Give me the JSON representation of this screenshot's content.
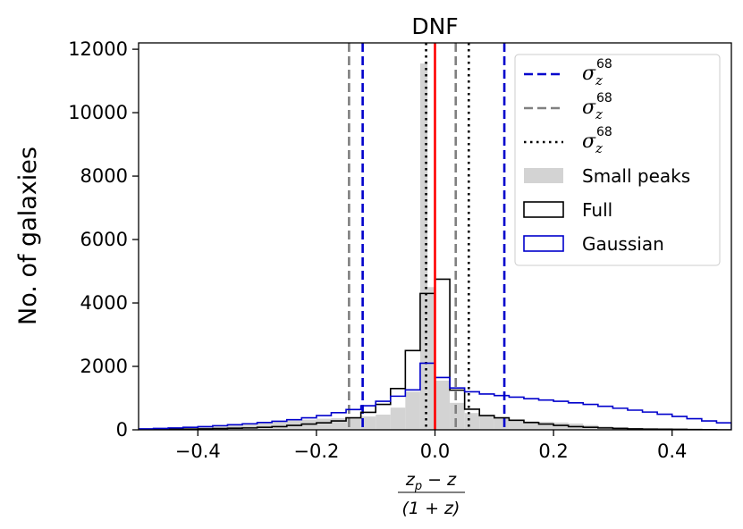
{
  "chart_data": {
    "type": "histogram",
    "title": "DNF",
    "ylabel": "No. of galaxies",
    "xlabel": {
      "numerator": "z_p − z",
      "denominator": "(1 + z)",
      "num_main": "z",
      "num_sub": "p",
      "num_rest": " − z",
      "den_text": "(1 + z)"
    },
    "xlim": [
      -0.5,
      0.5
    ],
    "ylim": [
      0,
      12200
    ],
    "xticks": [
      -0.4,
      -0.2,
      0.0,
      0.2,
      0.4
    ],
    "xtick_labels": [
      "−0.4",
      "−0.2",
      "0.0",
      "0.2",
      "0.4"
    ],
    "yticks": [
      0,
      2000,
      4000,
      6000,
      8000,
      10000,
      12000
    ],
    "ytick_labels": [
      "0",
      "2000",
      "4000",
      "6000",
      "8000",
      "10000",
      "12000"
    ],
    "bin_edges": [
      -0.5,
      -0.475,
      -0.45,
      -0.425,
      -0.4,
      -0.375,
      -0.35,
      -0.325,
      -0.3,
      -0.275,
      -0.25,
      -0.225,
      -0.2,
      -0.175,
      -0.15,
      -0.125,
      -0.1,
      -0.075,
      -0.05,
      -0.025,
      0.0,
      0.025,
      0.05,
      0.075,
      0.1,
      0.125,
      0.15,
      0.175,
      0.2,
      0.225,
      0.25,
      0.275,
      0.3,
      0.325,
      0.35,
      0.375,
      0.4,
      0.425,
      0.45,
      0.475,
      0.5
    ],
    "series": [
      {
        "name": "Small peaks",
        "style": "filled",
        "color": "#d3d3d3",
        "bin_edges": [
          -0.5,
          -0.475,
          -0.45,
          -0.425,
          -0.4,
          -0.375,
          -0.35,
          -0.325,
          -0.3,
          -0.275,
          -0.25,
          -0.225,
          -0.2,
          -0.175,
          -0.15,
          -0.125,
          -0.1,
          -0.075,
          -0.05,
          -0.025,
          -0.0125,
          0.0,
          0.025,
          0.05,
          0.075,
          0.1,
          0.125,
          0.15,
          0.175,
          0.2,
          0.225,
          0.25,
          0.275,
          0.3,
          0.325,
          0.35,
          0.375,
          0.4,
          0.425,
          0.45,
          0.475,
          0.5
        ],
        "values": [
          20,
          40,
          60,
          80,
          100,
          120,
          150,
          180,
          210,
          250,
          290,
          320,
          350,
          370,
          390,
          420,
          480,
          700,
          1200,
          11550,
          4500,
          1550,
          850,
          530,
          460,
          370,
          300,
          270,
          250,
          230,
          200,
          150,
          110,
          80,
          60,
          40,
          30,
          20,
          15,
          10,
          5
        ]
      },
      {
        "name": "Full",
        "style": "step",
        "color": "#000000",
        "values": [
          10,
          15,
          20,
          25,
          30,
          40,
          50,
          60,
          80,
          100,
          140,
          180,
          220,
          280,
          380,
          550,
          800,
          1300,
          2500,
          4300,
          4750,
          1250,
          650,
          450,
          380,
          300,
          230,
          180,
          140,
          100,
          80,
          60,
          45,
          30,
          25,
          20,
          15,
          10,
          5,
          0
        ]
      },
      {
        "name": "Gaussian",
        "style": "step",
        "color": "#0000cc",
        "values": [
          30,
          45,
          60,
          80,
          100,
          130,
          160,
          190,
          230,
          270,
          320,
          380,
          450,
          540,
          640,
          760,
          900,
          1060,
          1260,
          2100,
          1650,
          1320,
          1200,
          1130,
          1080,
          1030,
          980,
          940,
          900,
          850,
          800,
          740,
          680,
          620,
          560,
          490,
          420,
          350,
          280,
          220
        ]
      }
    ],
    "vlines": [
      {
        "name": "zero-line",
        "x": 0.0,
        "color": "#ff0000",
        "style": "solid"
      },
      {
        "name": "sigma68-blue-left",
        "x": -0.122,
        "color": "#0000cc",
        "style": "dashed"
      },
      {
        "name": "sigma68-blue-right",
        "x": 0.117,
        "color": "#0000cc",
        "style": "dashed"
      },
      {
        "name": "sigma68-gray-left",
        "x": -0.145,
        "color": "#808080",
        "style": "dashed"
      },
      {
        "name": "sigma68-gray-right",
        "x": 0.035,
        "color": "#808080",
        "style": "dashed"
      },
      {
        "name": "sigma68-black-left",
        "x": -0.015,
        "color": "#000000",
        "style": "dotted"
      },
      {
        "name": "sigma68-black-right",
        "x": 0.057,
        "color": "#000000",
        "style": "dotted"
      }
    ],
    "legend": {
      "location": "top-right",
      "entries": [
        {
          "label": "σ_z^68",
          "main": "σ",
          "sub": "z",
          "sup": "68",
          "kind": "dashed",
          "color": "#0000cc"
        },
        {
          "label": "σ_z^68",
          "main": "σ",
          "sub": "z",
          "sup": "68",
          "kind": "dashed",
          "color": "#808080"
        },
        {
          "label": "σ_z^68",
          "main": "σ",
          "sub": "z",
          "sup": "68",
          "kind": "dotted",
          "color": "#000000"
        },
        {
          "label": "Small peaks",
          "kind": "patch-filled",
          "color": "#d3d3d3"
        },
        {
          "label": "Full",
          "kind": "patch-outline",
          "color": "#000000"
        },
        {
          "label": "Gaussian",
          "kind": "patch-outline",
          "color": "#0000cc"
        }
      ]
    }
  }
}
